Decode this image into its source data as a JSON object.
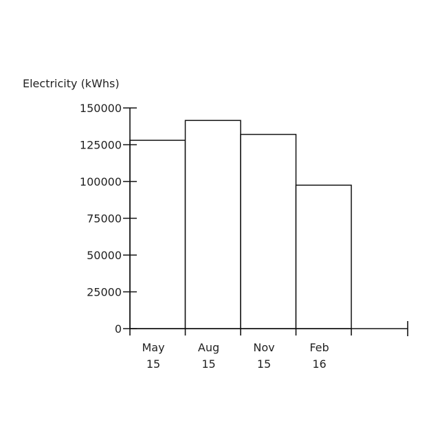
{
  "chart_data": {
    "type": "bar",
    "ylabel": "Electricity (kWhs)",
    "categories": [
      [
        "May",
        "15"
      ],
      [
        "Aug",
        "15"
      ],
      [
        "Nov",
        "15"
      ],
      [
        "Feb",
        "16"
      ]
    ],
    "values": [
      128000,
      141500,
      132000,
      97500
    ],
    "yticks": [
      "0",
      "25000",
      "50000",
      "75000",
      "100000",
      "125000",
      "150000"
    ],
    "ylim": [
      0,
      150000
    ],
    "grid": false,
    "legend": "none",
    "colors": {
      "bar_fill": "#ffffff",
      "bar_stroke": "#111111",
      "axis": "#111111"
    }
  }
}
